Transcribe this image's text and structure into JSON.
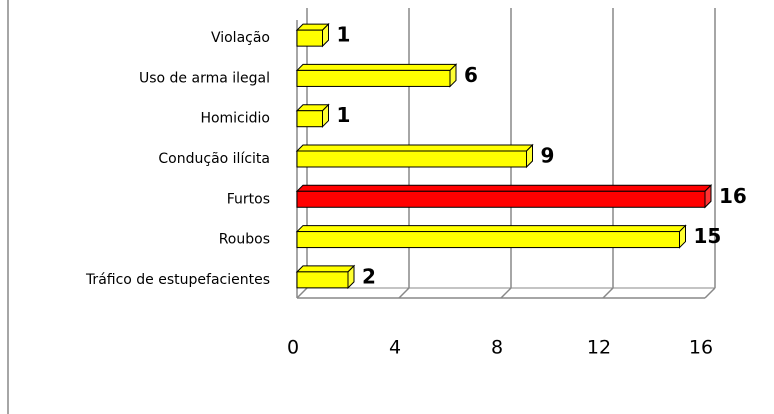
{
  "chart_data": {
    "type": "bar",
    "orientation": "horizontal",
    "categories": [
      "Violação",
      "Uso de arma ilegal",
      "Homicidio",
      "Condução ilícita",
      "Furtos",
      "Roubos",
      "Tráfico de estupefacientes"
    ],
    "values": [
      1,
      6,
      1,
      9,
      16,
      15,
      2
    ],
    "colors": [
      "#ffff00",
      "#ffff00",
      "#ffff00",
      "#ffff00",
      "#ff0000",
      "#ffff00",
      "#ffff00"
    ],
    "xlim": [
      0,
      16
    ],
    "xticks": [
      0,
      4,
      8,
      12,
      16
    ],
    "grid": true
  }
}
